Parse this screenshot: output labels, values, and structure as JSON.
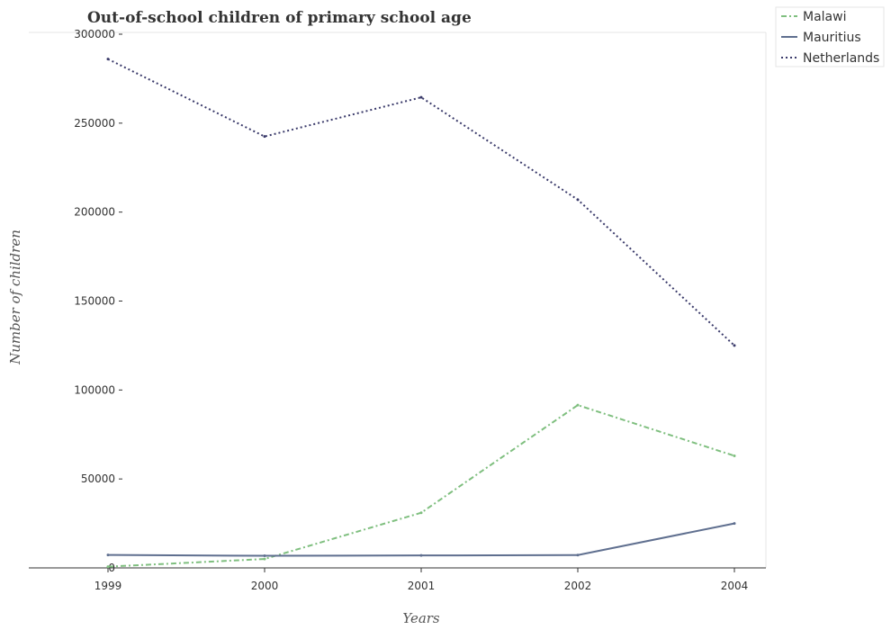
{
  "chart_data": {
    "type": "line",
    "title": "Out-of-school children of primary school age",
    "xlabel": "Years",
    "ylabel": "Number of children",
    "categories": [
      "1999",
      "2000",
      "2001",
      "2002",
      "2004"
    ],
    "ylim": [
      0,
      300000
    ],
    "yticks": [
      0,
      50000,
      100000,
      150000,
      200000,
      250000,
      300000
    ],
    "ytick_labels": [
      "0",
      "50000",
      "100000",
      "150000",
      "200000",
      "250000",
      "300000"
    ],
    "grid": false,
    "legend_position": "top-right",
    "series": [
      {
        "name": "Malawi",
        "color": "#7fbf7f",
        "dash": "dash-dot",
        "values": [
          700,
          5000,
          31000,
          91500,
          63000
        ]
      },
      {
        "name": "Mauritius",
        "color": "#5f6f8f",
        "dash": "solid",
        "values": [
          7300,
          6800,
          7000,
          7200,
          25000
        ]
      },
      {
        "name": "Netherlands",
        "color": "#3a3a6a",
        "dash": "dotted",
        "values": [
          286000,
          242500,
          264500,
          207000,
          125000
        ]
      }
    ]
  }
}
